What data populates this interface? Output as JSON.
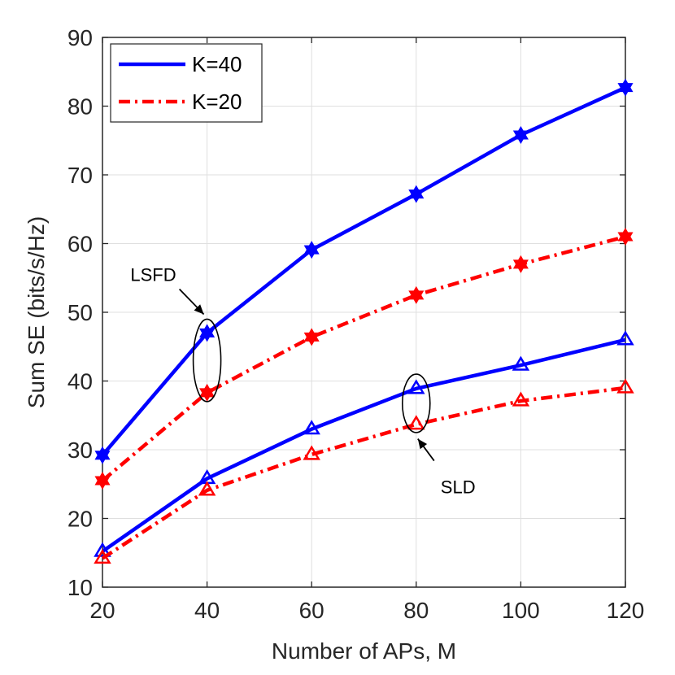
{
  "chart_data": {
    "type": "line",
    "title": "",
    "xlabel": "Number of APs, M",
    "ylabel": "Sum SE (bits/s/Hz)",
    "xlim": [
      20,
      120
    ],
    "ylim": [
      10,
      90
    ],
    "xticks": [
      20,
      40,
      60,
      80,
      100,
      120
    ],
    "yticks": [
      10,
      20,
      30,
      40,
      50,
      60,
      70,
      80,
      90
    ],
    "grid": true,
    "legend_position": "top-left",
    "legend": [
      {
        "label": "K=40",
        "color": "#0000ff",
        "style": "solid"
      },
      {
        "label": "K=20",
        "color": "#ff0000",
        "style": "dashdot"
      }
    ],
    "x": [
      20,
      40,
      60,
      80,
      100,
      120
    ],
    "series": [
      {
        "name": "LSFD, K=40",
        "color": "#0000ff",
        "style": "solid",
        "marker": "hexagram",
        "values": [
          29.2,
          47.0,
          59.1,
          67.2,
          75.8,
          82.7
        ]
      },
      {
        "name": "LSFD, K=20",
        "color": "#ff0000",
        "style": "dashdot",
        "marker": "hexagram",
        "values": [
          25.5,
          38.3,
          46.4,
          52.5,
          57.0,
          61.0
        ]
      },
      {
        "name": "SLD, K=40",
        "color": "#0000ff",
        "style": "solid",
        "marker": "triangle",
        "values": [
          15.2,
          25.8,
          33.0,
          38.9,
          42.3,
          46.0
        ]
      },
      {
        "name": "SLD, K=20",
        "color": "#ff0000",
        "style": "dashdot",
        "marker": "triangle",
        "values": [
          14.2,
          24.1,
          29.3,
          33.7,
          37.1,
          39.0
        ]
      }
    ],
    "annotations": [
      {
        "text": "LSFD",
        "ellipse_x": 40,
        "ellipse_y": [
          37,
          49
        ],
        "arrow_target": [
          40,
          49
        ]
      },
      {
        "text": "SLD",
        "ellipse_x": 80,
        "ellipse_y": [
          32.5,
          41
        ],
        "arrow_target": [
          80,
          32.3
        ]
      }
    ]
  }
}
